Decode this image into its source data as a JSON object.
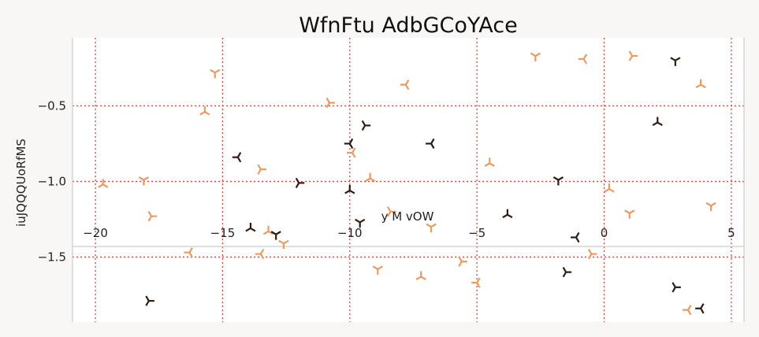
{
  "chart_data": {
    "type": "scatter",
    "title": "WfnFtu AdbGCoYAce",
    "xlabel": "y M vOW",
    "ylabel": "iuJQQQUoRfMS",
    "xlim": [
      -20.9,
      5.5
    ],
    "ylim": [
      -1.93,
      -0.05
    ],
    "x_ticks": [
      -20,
      -15,
      -10,
      -5,
      0,
      5
    ],
    "x_tick_labels": [
      "−20",
      "−15",
      "−10",
      "−5",
      "0",
      "5"
    ],
    "y_ticks": [
      -0.5,
      -1.0,
      -1.5
    ],
    "y_tick_labels": [
      "−0.5",
      "−1.0",
      "−1.5"
    ],
    "x_axis_position_y": -1.43,
    "grid": true,
    "grid_color": "#e8413c",
    "colors": {
      "light": "#ec9a5f",
      "dark": "#2e1c14"
    },
    "series": [
      {
        "color_key": "light",
        "points": [
          [
            -19.7,
            -1.02
          ],
          [
            -18.1,
            -0.99
          ],
          [
            -17.8,
            -1.23
          ],
          [
            -16.3,
            -1.47
          ],
          [
            -15.7,
            -0.54
          ],
          [
            -15.3,
            -0.28
          ],
          [
            -13.5,
            -0.92
          ],
          [
            -13.5,
            -1.48
          ],
          [
            -13.2,
            -1.33
          ],
          [
            -12.6,
            -1.41
          ],
          [
            -10.8,
            -0.48
          ],
          [
            -9.9,
            -0.81
          ],
          [
            -9.2,
            -0.98
          ],
          [
            -8.9,
            -1.58
          ],
          [
            -8.4,
            -1.2
          ],
          [
            -7.8,
            -0.36
          ],
          [
            -7.2,
            -1.63
          ],
          [
            -6.8,
            -1.3
          ],
          [
            -5.6,
            -1.53
          ],
          [
            -5.0,
            -1.67
          ],
          [
            -4.5,
            -0.88
          ],
          [
            -2.7,
            -0.17
          ],
          [
            -0.5,
            -1.48
          ],
          [
            -0.8,
            -0.19
          ],
          [
            0.2,
            -1.05
          ],
          [
            1.0,
            -1.21
          ],
          [
            1.1,
            -0.17
          ],
          [
            3.3,
            -1.85
          ],
          [
            3.8,
            -0.36
          ],
          [
            4.2,
            -1.16
          ]
        ]
      },
      {
        "color_key": "dark",
        "points": [
          [
            -17.9,
            -1.79
          ],
          [
            -14.4,
            -0.84
          ],
          [
            -13.9,
            -1.31
          ],
          [
            -12.9,
            -1.35
          ],
          [
            -12.0,
            -1.01
          ],
          [
            -10.0,
            -0.75
          ],
          [
            -10.0,
            -1.06
          ],
          [
            -9.6,
            -1.27
          ],
          [
            -9.4,
            -0.63
          ],
          [
            -6.8,
            -0.75
          ],
          [
            -3.8,
            -1.22
          ],
          [
            -1.8,
            -0.99
          ],
          [
            -1.5,
            -1.6
          ],
          [
            -1.1,
            -1.37
          ],
          [
            2.1,
            -0.61
          ],
          [
            2.8,
            -0.2
          ],
          [
            2.8,
            -1.7
          ],
          [
            3.8,
            -1.84
          ]
        ]
      }
    ]
  }
}
